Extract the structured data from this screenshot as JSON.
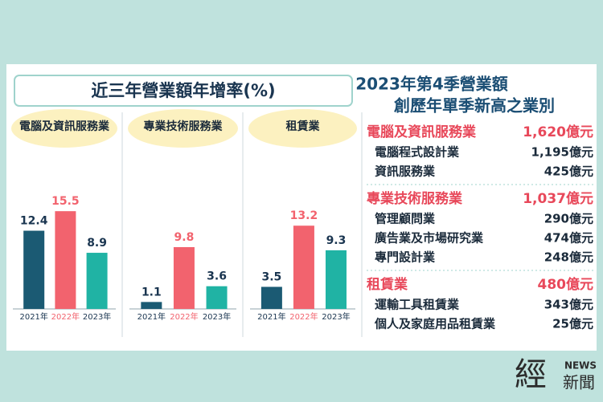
{
  "heading": "近三年營業額年增率(%)",
  "chart_data": [
    {
      "type": "bar",
      "title": "電腦及資訊服務業",
      "categories": [
        "2021年",
        "2022年",
        "2023年"
      ],
      "values": [
        12.4,
        15.5,
        8.9
      ],
      "colors": [
        "#1b5a73",
        "#f2636e",
        "#20b3a4"
      ]
    },
    {
      "type": "bar",
      "title": "專業技術服務業",
      "categories": [
        "2021年",
        "2022年",
        "2023年"
      ],
      "values": [
        1.1,
        9.8,
        3.6
      ],
      "colors": [
        "#1b5a73",
        "#f2636e",
        "#20b3a4"
      ]
    },
    {
      "type": "bar",
      "title": "租賃業",
      "categories": [
        "2021年",
        "2022年",
        "2023年"
      ],
      "values": [
        3.5,
        13.2,
        9.3
      ],
      "colors": [
        "#1b5a73",
        "#f2636e",
        "#20b3a4"
      ]
    }
  ],
  "summary": {
    "title": [
      "2023年第4季營業額",
      "創歷年單季新高之業別"
    ],
    "groups": [
      {
        "name": "電腦及資訊服務業",
        "total": "1,620億元",
        "items": [
          {
            "name": "電腦程式設計業",
            "value": "1,195億元"
          },
          {
            "name": "資訊服務業",
            "value": "425億元"
          }
        ]
      },
      {
        "name": "專業技術服務業",
        "total": "1,037億元",
        "items": [
          {
            "name": "管理顧問業",
            "value": "290億元"
          },
          {
            "name": "廣告業及市場研究業",
            "value": "474億元"
          },
          {
            "name": "專門設計業",
            "value": "248億元"
          }
        ]
      },
      {
        "name": "租賃業",
        "total": "480億元",
        "items": [
          {
            "name": "運輸工具租賃業",
            "value": "343億元"
          },
          {
            "name": "個人及家庭用品租賃業",
            "value": "25億元"
          }
        ]
      }
    ]
  },
  "logo": {
    "mark": "經",
    "tag": "NEWS",
    "name": "新聞"
  }
}
